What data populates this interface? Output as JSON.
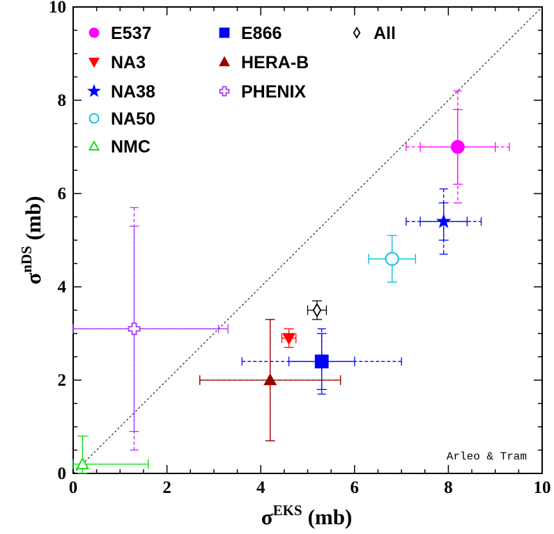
{
  "chart_data": {
    "type": "scatter",
    "xlabel": "σ",
    "xlabel_sup": "EKS",
    "xlabel_unit": "(mb)",
    "ylabel": "σ",
    "ylabel_sup": "nDS",
    "ylabel_unit": "(mb)",
    "xlim": [
      0,
      10
    ],
    "ylim": [
      0,
      10
    ],
    "x_ticks": [
      "0",
      "2",
      "4",
      "6",
      "8",
      "10"
    ],
    "y_ticks": [
      "0",
      "2",
      "4",
      "6",
      "8",
      "10"
    ],
    "grid": false,
    "diagonal": "y = x (dashed)",
    "legend_position": "top-left",
    "annotation": "Arleo & Tram",
    "series": [
      {
        "name": "E537",
        "color": "#ff00ff",
        "marker": "circle-filled",
        "x": 8.2,
        "y": 7.0,
        "xerr": [
          0.8,
          0.8
        ],
        "xerr_sys": [
          1.1,
          1.1
        ],
        "yerr": [
          0.8,
          0.8
        ],
        "yerr_sys": [
          1.2,
          1.2
        ]
      },
      {
        "name": "NA3",
        "color": "#ff0000",
        "marker": "triangle-down-filled",
        "x": 4.6,
        "y": 2.9,
        "xerr": [
          0.15,
          0.15
        ],
        "xerr_sys": null,
        "yerr": [
          0.2,
          0.2
        ],
        "yerr_sys": null
      },
      {
        "name": "NA38",
        "color": "#0000ff",
        "marker": "star-filled",
        "x": 7.9,
        "y": 5.4,
        "xerr": [
          0.5,
          0.5
        ],
        "xerr_sys": [
          0.8,
          0.8
        ],
        "yerr": [
          0.4,
          0.4
        ],
        "yerr_sys": [
          0.7,
          0.7
        ]
      },
      {
        "name": "NA50",
        "color": "#00bbdd",
        "marker": "circle-open",
        "x": 6.8,
        "y": 4.6,
        "xerr": [
          0.5,
          0.5
        ],
        "xerr_sys": null,
        "yerr": [
          0.5,
          0.5
        ],
        "yerr_sys": null
      },
      {
        "name": "E866",
        "color": "#0000ff",
        "marker": "square-filled",
        "x": 5.3,
        "y": 2.4,
        "xerr": [
          0.7,
          0.7
        ],
        "xerr_sys": [
          1.7,
          1.7
        ],
        "yerr": [
          0.6,
          0.6
        ],
        "yerr_sys": [
          0.7,
          0.7
        ]
      },
      {
        "name": "HERA-B",
        "color": "#990000",
        "marker": "triangle-up-filled",
        "x": 4.2,
        "y": 2.0,
        "xerr": [
          1.5,
          1.5
        ],
        "xerr_sys": [
          1.5,
          1.5
        ],
        "yerr": [
          1.3,
          1.3
        ],
        "yerr_sys": [
          1.3,
          1.3
        ]
      },
      {
        "name": "PHENIX",
        "color": "#aa33ff",
        "marker": "cross-open",
        "x": 1.3,
        "y": 3.1,
        "xerr": [
          1.3,
          2.0
        ],
        "xerr_sys": [
          1.3,
          1.8
        ],
        "yerr": [
          2.2,
          2.2
        ],
        "yerr_sys": [
          2.6,
          2.6
        ]
      },
      {
        "name": "NMC",
        "color": "#00dd00",
        "marker": "triangle-up-open",
        "x": 0.2,
        "y": 0.2,
        "xerr": [
          0.2,
          1.4
        ],
        "xerr_sys": null,
        "yerr": [
          0.2,
          0.6
        ],
        "yerr_sys": null
      },
      {
        "name": "All",
        "color": "#000000",
        "marker": "diamond-open",
        "x": 5.2,
        "y": 3.5,
        "xerr": [
          0.2,
          0.2
        ],
        "xerr_sys": null,
        "yerr": [
          0.2,
          0.2
        ],
        "yerr_sys": null
      }
    ],
    "legend": {
      "columns": [
        [
          "E537",
          "NA3",
          "NA38",
          "NA50",
          "NMC"
        ],
        [
          "E866",
          "HERA-B",
          "PHENIX"
        ],
        [
          "All"
        ]
      ]
    }
  }
}
